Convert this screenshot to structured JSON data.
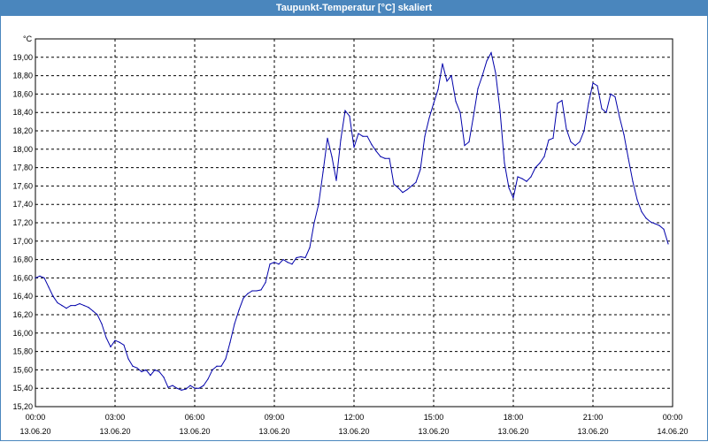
{
  "window": {
    "title": "Taupunkt-Temperatur [°C] skaliert"
  },
  "colors": {
    "titlebar": "#4a86bd",
    "line": "#0000aa",
    "grid": "#000000"
  },
  "chart_data": {
    "type": "line",
    "title": "Taupunkt-Temperatur [°C] skaliert",
    "ylabel": "°C",
    "xlabel": "",
    "ylim": [
      15.2,
      19.2
    ],
    "xlim_hours": [
      0,
      24
    ],
    "grid": true,
    "x_ticks": [
      {
        "time": "00:00",
        "date": "13.06.20"
      },
      {
        "time": "03:00",
        "date": "13.06.20"
      },
      {
        "time": "06:00",
        "date": "13.06.20"
      },
      {
        "time": "09:00",
        "date": "13.06.20"
      },
      {
        "time": "12:00",
        "date": "13.06.20"
      },
      {
        "time": "15:00",
        "date": "13.06.20"
      },
      {
        "time": "18:00",
        "date": "13.06.20"
      },
      {
        "time": "21:00",
        "date": "13.06.20"
      },
      {
        "time": "00:00",
        "date": "14.06.20"
      }
    ],
    "y_ticks": [
      "15,20",
      "15,40",
      "15,60",
      "15,80",
      "16,00",
      "16,20",
      "16,40",
      "16,60",
      "16,80",
      "17,00",
      "17,20",
      "17,40",
      "17,60",
      "17,80",
      "18,00",
      "18,20",
      "18,40",
      "18,60",
      "18,80",
      "19,00"
    ],
    "series": [
      {
        "values": [
          [
            "13.06.20 00:00",
            16.6
          ],
          [
            "13.06.20 00:10",
            16.62
          ],
          [
            "13.06.20 00:20",
            16.6
          ],
          [
            "13.06.20 00:30",
            16.5
          ],
          [
            "13.06.20 00:40",
            16.4
          ],
          [
            "13.06.20 00:50",
            16.33
          ],
          [
            "13.06.20 01:00",
            16.3
          ],
          [
            "13.06.20 01:10",
            16.27
          ],
          [
            "13.06.20 01:20",
            16.3
          ],
          [
            "13.06.20 01:30",
            16.3
          ],
          [
            "13.06.20 01:40",
            16.32
          ],
          [
            "13.06.20 01:50",
            16.3
          ],
          [
            "13.06.20 02:00",
            16.28
          ],
          [
            "13.06.20 02:10",
            16.24
          ],
          [
            "13.06.20 02:20",
            16.2
          ],
          [
            "13.06.20 02:30",
            16.1
          ],
          [
            "13.06.20 02:40",
            15.95
          ],
          [
            "13.06.20 02:50",
            15.85
          ],
          [
            "13.06.20 03:00",
            15.92
          ],
          [
            "13.06.20 03:10",
            15.9
          ],
          [
            "13.06.20 03:20",
            15.87
          ],
          [
            "13.06.20 03:30",
            15.72
          ],
          [
            "13.06.20 03:40",
            15.64
          ],
          [
            "13.06.20 03:50",
            15.62
          ],
          [
            "13.06.20 04:00",
            15.58
          ],
          [
            "13.06.20 04:10",
            15.6
          ],
          [
            "13.06.20 04:20",
            15.54
          ],
          [
            "13.06.20 04:30",
            15.6
          ],
          [
            "13.06.20 04:40",
            15.58
          ],
          [
            "13.06.20 04:50",
            15.52
          ],
          [
            "13.06.20 05:00",
            15.41
          ],
          [
            "13.06.20 05:10",
            15.43
          ],
          [
            "13.06.20 05:20",
            15.4
          ],
          [
            "13.06.20 05:30",
            15.38
          ],
          [
            "13.06.20 05:40",
            15.39
          ],
          [
            "13.06.20 05:50",
            15.43
          ],
          [
            "13.06.20 06:00",
            15.4
          ],
          [
            "13.06.20 06:10",
            15.4
          ],
          [
            "13.06.20 06:20",
            15.43
          ],
          [
            "13.06.20 06:30",
            15.5
          ],
          [
            "13.06.20 06:40",
            15.6
          ],
          [
            "13.06.20 06:50",
            15.64
          ],
          [
            "13.06.20 07:00",
            15.64
          ],
          [
            "13.06.20 07:10",
            15.72
          ],
          [
            "13.06.20 07:20",
            15.9
          ],
          [
            "13.06.20 07:30",
            16.1
          ],
          [
            "13.06.20 07:40",
            16.25
          ],
          [
            "13.06.20 07:50",
            16.38
          ],
          [
            "13.06.20 08:00",
            16.43
          ],
          [
            "13.06.20 08:10",
            16.46
          ],
          [
            "13.06.20 08:20",
            16.46
          ],
          [
            "13.06.20 08:30",
            16.47
          ],
          [
            "13.06.20 08:40",
            16.55
          ],
          [
            "13.06.20 08:50",
            16.75
          ],
          [
            "13.06.20 09:00",
            16.77
          ],
          [
            "13.06.20 09:10",
            16.75
          ],
          [
            "13.06.20 09:20",
            16.8
          ],
          [
            "13.06.20 09:30",
            16.77
          ],
          [
            "13.06.20 09:40",
            16.75
          ],
          [
            "13.06.20 09:50",
            16.82
          ],
          [
            "13.06.20 10:00",
            16.83
          ],
          [
            "13.06.20 10:10",
            16.82
          ],
          [
            "13.06.20 10:20",
            16.93
          ],
          [
            "13.06.20 10:30",
            17.2
          ],
          [
            "13.06.20 10:40",
            17.4
          ],
          [
            "13.06.20 10:50",
            17.75
          ],
          [
            "13.06.20 11:00",
            18.12
          ],
          [
            "13.06.20 11:10",
            17.92
          ],
          [
            "13.06.20 11:20",
            17.66
          ],
          [
            "13.06.20 11:30",
            18.1
          ],
          [
            "13.06.20 11:40",
            18.42
          ],
          [
            "13.06.20 11:50",
            18.36
          ],
          [
            "13.06.20 12:00",
            18.02
          ],
          [
            "13.06.20 12:10",
            18.17
          ],
          [
            "13.06.20 12:20",
            18.14
          ],
          [
            "13.06.20 12:30",
            18.14
          ],
          [
            "13.06.20 12:40",
            18.05
          ],
          [
            "13.06.20 12:50",
            17.98
          ],
          [
            "13.06.20 13:00",
            17.92
          ],
          [
            "13.06.20 13:10",
            17.9
          ],
          [
            "13.06.20 13:20",
            17.9
          ],
          [
            "13.06.20 13:30",
            17.62
          ],
          [
            "13.06.20 13:40",
            17.58
          ],
          [
            "13.06.20 13:50",
            17.53
          ],
          [
            "13.06.20 14:00",
            17.56
          ],
          [
            "13.06.20 14:10",
            17.6
          ],
          [
            "13.06.20 14:20",
            17.64
          ],
          [
            "13.06.20 14:30",
            17.78
          ],
          [
            "13.06.20 14:40",
            18.14
          ],
          [
            "13.06.20 14:50",
            18.34
          ],
          [
            "13.06.20 15:00",
            18.5
          ],
          [
            "13.06.20 15:10",
            18.65
          ],
          [
            "13.06.20 15:20",
            18.93
          ],
          [
            "13.06.20 15:30",
            18.74
          ],
          [
            "13.06.20 15:40",
            18.8
          ],
          [
            "13.06.20 15:50",
            18.52
          ],
          [
            "13.06.20 16:00",
            18.4
          ],
          [
            "13.06.20 16:10",
            18.04
          ],
          [
            "13.06.20 16:20",
            18.08
          ],
          [
            "13.06.20 16:30",
            18.36
          ],
          [
            "13.06.20 16:40",
            18.66
          ],
          [
            "13.06.20 16:50",
            18.8
          ],
          [
            "13.06.20 17:00",
            18.96
          ],
          [
            "13.06.20 17:10",
            19.05
          ],
          [
            "13.06.20 17:20",
            18.83
          ],
          [
            "13.06.20 17:30",
            18.42
          ],
          [
            "13.06.20 17:40",
            17.85
          ],
          [
            "13.06.20 17:50",
            17.58
          ],
          [
            "13.06.20 18:00",
            17.47
          ],
          [
            "13.06.20 18:10",
            17.7
          ],
          [
            "13.06.20 18:20",
            17.68
          ],
          [
            "13.06.20 18:30",
            17.65
          ],
          [
            "13.06.20 18:40",
            17.7
          ],
          [
            "13.06.20 18:50",
            17.8
          ],
          [
            "13.06.20 19:00",
            17.85
          ],
          [
            "13.06.20 19:10",
            17.92
          ],
          [
            "13.06.20 19:20",
            18.1
          ],
          [
            "13.06.20 19:30",
            18.12
          ],
          [
            "13.06.20 19:40",
            18.5
          ],
          [
            "13.06.20 19:50",
            18.53
          ],
          [
            "13.06.20 20:00",
            18.22
          ],
          [
            "13.06.20 20:10",
            18.08
          ],
          [
            "13.06.20 20:20",
            18.04
          ],
          [
            "13.06.20 20:30",
            18.08
          ],
          [
            "13.06.20 20:40",
            18.2
          ],
          [
            "13.06.20 20:50",
            18.5
          ],
          [
            "13.06.20 21:00",
            18.72
          ],
          [
            "13.06.20 21:10",
            18.69
          ],
          [
            "13.06.20 21:20",
            18.44
          ],
          [
            "13.06.20 21:30",
            18.4
          ],
          [
            "13.06.20 21:40",
            18.6
          ],
          [
            "13.06.20 21:50",
            18.57
          ],
          [
            "13.06.20 22:00",
            18.35
          ],
          [
            "13.06.20 22:10",
            18.16
          ],
          [
            "13.06.20 22:20",
            17.9
          ],
          [
            "13.06.20 22:30",
            17.65
          ],
          [
            "13.06.20 22:40",
            17.45
          ],
          [
            "13.06.20 22:50",
            17.32
          ],
          [
            "13.06.20 23:00",
            17.25
          ],
          [
            "13.06.20 23:10",
            17.21
          ],
          [
            "13.06.20 23:20",
            17.19
          ],
          [
            "13.06.20 23:30",
            17.17
          ],
          [
            "13.06.20 23:40",
            17.13
          ],
          [
            "13.06.20 23:50",
            16.97
          ]
        ]
      }
    ]
  }
}
